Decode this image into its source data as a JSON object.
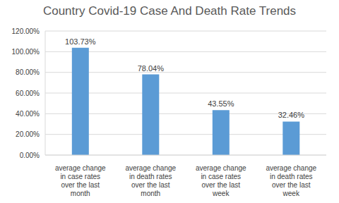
{
  "chart_data": {
    "type": "bar",
    "title": "Country Covid-19 Case And Death Rate Trends",
    "categories": [
      "average change in case rates over the last month",
      "average change in death rates over the last month",
      "average change in case rates over the last week",
      "average change in death rates over the last week"
    ],
    "values": [
      103.73,
      78.04,
      43.55,
      32.46
    ],
    "value_labels": [
      "103.73%",
      "78.04%",
      "43.55%",
      "32.46%"
    ],
    "data_labels": true,
    "color": "#5b9bd5",
    "ylim": [
      0,
      120
    ],
    "yticks": [
      {
        "value": 0,
        "label": "0.00%"
      },
      {
        "value": 20,
        "label": "20.00%"
      },
      {
        "value": 40,
        "label": "40.00%"
      },
      {
        "value": 60,
        "label": "60.00%"
      },
      {
        "value": 80,
        "label": "80.00%"
      },
      {
        "value": 100,
        "label": "100.00%"
      },
      {
        "value": 120,
        "label": "120.00%"
      }
    ],
    "grid": true
  }
}
